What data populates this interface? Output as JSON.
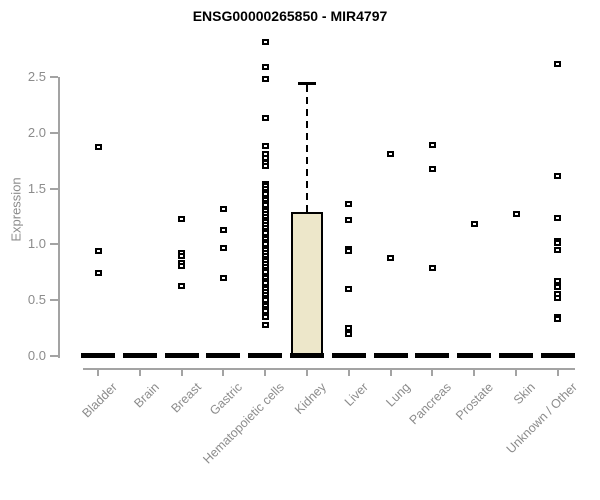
{
  "chart_data": {
    "type": "boxplot",
    "title": "ENSG00000265850 - MIR4797",
    "xlabel": "",
    "ylabel": "Expression",
    "ylim": [
      0,
      2.85
    ],
    "grid": false,
    "legend": "none",
    "marker": "open-square",
    "yticks": [
      {
        "label": "0.0",
        "value": 0.0
      },
      {
        "label": "0.5",
        "value": 0.5
      },
      {
        "label": "1.0",
        "value": 1.0
      },
      {
        "label": "1.5",
        "value": 1.5
      },
      {
        "label": "2.0",
        "value": 2.0
      },
      {
        "label": "2.5",
        "value": 2.5
      }
    ],
    "groups": [
      {
        "label": "Bladder",
        "median": 0.0,
        "points": [
          1.87,
          0.94,
          0.74
        ]
      },
      {
        "label": "Brain",
        "median": 0.0,
        "points": []
      },
      {
        "label": "Breast",
        "median": 0.0,
        "points": [
          1.23,
          0.92,
          0.9,
          0.83,
          0.81,
          0.63
        ]
      },
      {
        "label": "Gastric",
        "median": 0.0,
        "points": [
          1.32,
          1.13,
          0.97,
          0.7
        ]
      },
      {
        "label": "Hematopoietic cells",
        "median": 0.0,
        "points": [
          2.81,
          2.59,
          2.48,
          2.13,
          1.88,
          1.81,
          1.77,
          1.73,
          1.7,
          1.54,
          1.52,
          1.5,
          1.47,
          1.45,
          1.42,
          1.4,
          1.37,
          1.35,
          1.32,
          1.3,
          1.27,
          1.25,
          1.22,
          1.2,
          1.17,
          1.15,
          1.12,
          1.1,
          1.07,
          1.05,
          1.02,
          1.0,
          0.97,
          0.95,
          0.92,
          0.9,
          0.87,
          0.85,
          0.82,
          0.8,
          0.77,
          0.75,
          0.72,
          0.7,
          0.67,
          0.65,
          0.62,
          0.6,
          0.57,
          0.55,
          0.52,
          0.5,
          0.47,
          0.45,
          0.42,
          0.4,
          0.37,
          0.35,
          0.28
        ]
      },
      {
        "label": "Kidney",
        "median": 0.0,
        "points": [],
        "box": {
          "bottom": 0.0,
          "top": 1.29,
          "whisker_top": 2.45
        }
      },
      {
        "label": "Liver",
        "median": 0.0,
        "points": [
          1.36,
          1.22,
          0.96,
          0.94,
          0.6,
          0.25,
          0.2
        ]
      },
      {
        "label": "Lung",
        "median": 0.0,
        "points": [
          1.81,
          0.88
        ]
      },
      {
        "label": "Pancreas",
        "median": 0.0,
        "points": [
          1.89,
          1.68,
          0.79
        ]
      },
      {
        "label": "Prostate",
        "median": 0.0,
        "points": [
          1.18
        ]
      },
      {
        "label": "Skin",
        "median": 0.0,
        "points": [
          1.27
        ]
      },
      {
        "label": "Unknown / Other",
        "median": 0.0,
        "points": [
          2.62,
          1.61,
          1.24,
          1.03,
          1.01,
          0.95,
          0.67,
          0.62,
          0.56,
          0.52,
          0.35,
          0.33
        ]
      }
    ],
    "colors": {
      "box_fill": "#EDE7CA",
      "box_border": "#000000",
      "point_border": "#000000",
      "point_fill": "#FFFFFF",
      "median_line": "#000000",
      "axis_line": "#A3A3A3",
      "tick_text": "#8C8C8C",
      "title_text": "#000000"
    }
  }
}
